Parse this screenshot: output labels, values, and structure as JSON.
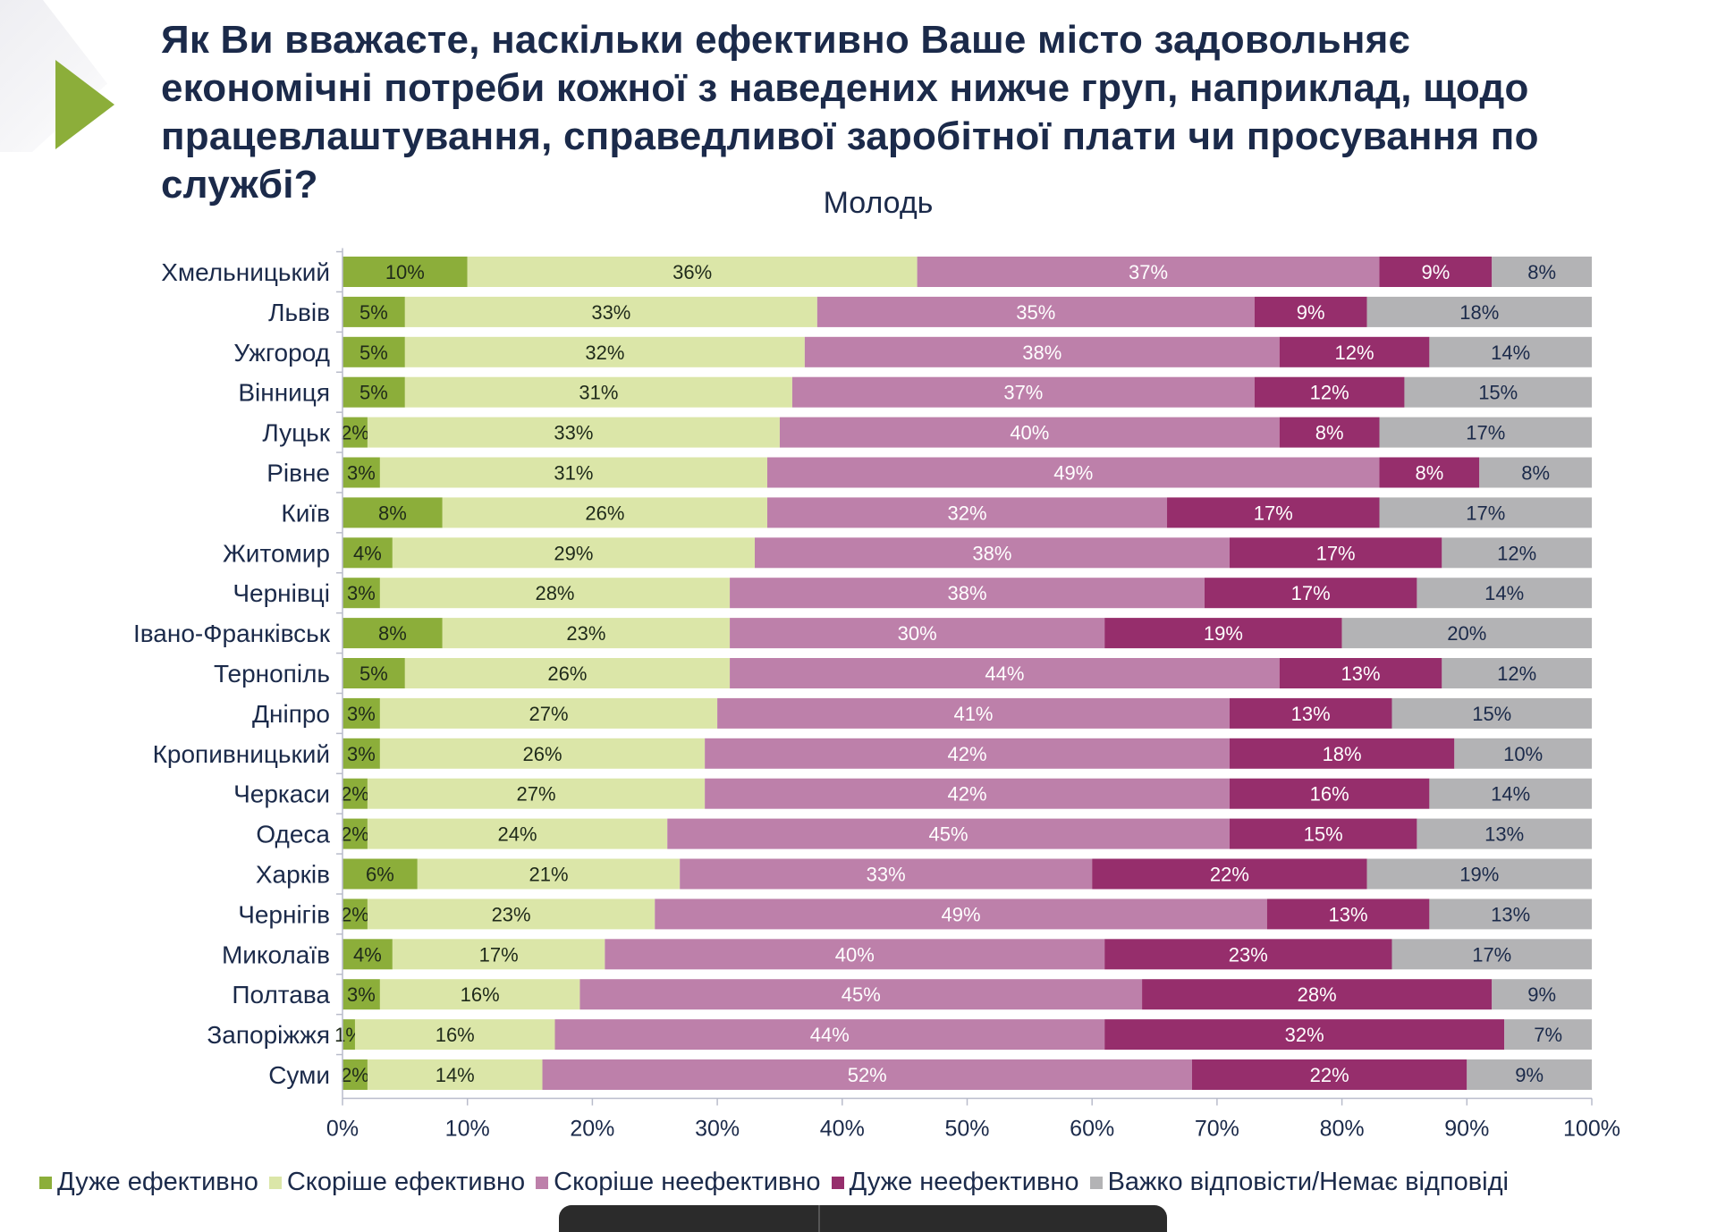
{
  "header": {
    "title": "Як Ви вважаєте, наскільки ефективно Ваше місто задовольняє економічні потреби кожної з наведених нижче груп, наприклад, щодо працевлаштування, справедливої заробітної плати чи просування по службі?",
    "title_lines": [
      "Як Ви вважаєте, наскільки ефективно Ваше місто задовольняє",
      "економічні потреби кожної з наведених нижче груп, наприклад, щодо",
      "працевлаштування, справедливої заробітної плати чи просування по",
      "службі?"
    ],
    "subtitle": "Молодь",
    "accent_color": "#8cae3a"
  },
  "chart_data": {
    "type": "bar",
    "orientation": "horizontal",
    "stacked": "percent",
    "title": "Молодь",
    "xlabel": "",
    "ylabel": "",
    "xlim": [
      0,
      100
    ],
    "x_ticks": [
      "0%",
      "10%",
      "20%",
      "30%",
      "40%",
      "50%",
      "60%",
      "70%",
      "80%",
      "90%",
      "100%"
    ],
    "grid": false,
    "legend_position": "bottom",
    "categories": [
      "Хмельницький",
      "Львів",
      "Ужгород",
      "Вінниця",
      "Луцьк",
      "Рівне",
      "Київ",
      "Житомир",
      "Чернівці",
      "Івано-Франківськ",
      "Тернопіль",
      "Дніпро",
      "Кропивницький",
      "Черкаси",
      "Одеса",
      "Харків",
      "Чернігів",
      "Миколаїв",
      "Полтава",
      "Запоріжжя",
      "Суми"
    ],
    "series": [
      {
        "name": "Дуже ефективно",
        "color": "#8cae3a",
        "label_color": "#1f2a1a",
        "values": [
          10,
          5,
          5,
          5,
          2,
          3,
          8,
          4,
          3,
          8,
          5,
          3,
          3,
          2,
          2,
          6,
          2,
          4,
          3,
          1,
          2
        ]
      },
      {
        "name": "Скоріше ефективно",
        "color": "#dbe6a8",
        "label_color": "#1f2a1a",
        "values": [
          36,
          33,
          32,
          31,
          33,
          31,
          26,
          29,
          28,
          23,
          26,
          27,
          26,
          27,
          24,
          21,
          23,
          17,
          16,
          16,
          14
        ]
      },
      {
        "name": "Скоріше неефективно",
        "color": "#bd80aa",
        "label_color": "#ffffff",
        "values": [
          37,
          35,
          38,
          37,
          40,
          49,
          32,
          38,
          38,
          30,
          44,
          41,
          42,
          42,
          45,
          33,
          49,
          40,
          45,
          44,
          52
        ]
      },
      {
        "name": "Дуже неефективно",
        "color": "#962e6c",
        "label_color": "#ffffff",
        "values": [
          9,
          9,
          12,
          12,
          8,
          8,
          17,
          17,
          17,
          19,
          13,
          13,
          18,
          16,
          15,
          22,
          13,
          23,
          28,
          32,
          22
        ]
      },
      {
        "name": "Важко відповісти/Немає відповіді",
        "color": "#b3b3b5",
        "label_color": "#1b2a4a",
        "values": [
          8,
          18,
          14,
          15,
          17,
          8,
          17,
          12,
          14,
          20,
          12,
          15,
          10,
          14,
          13,
          19,
          13,
          17,
          9,
          7,
          9
        ]
      }
    ]
  }
}
